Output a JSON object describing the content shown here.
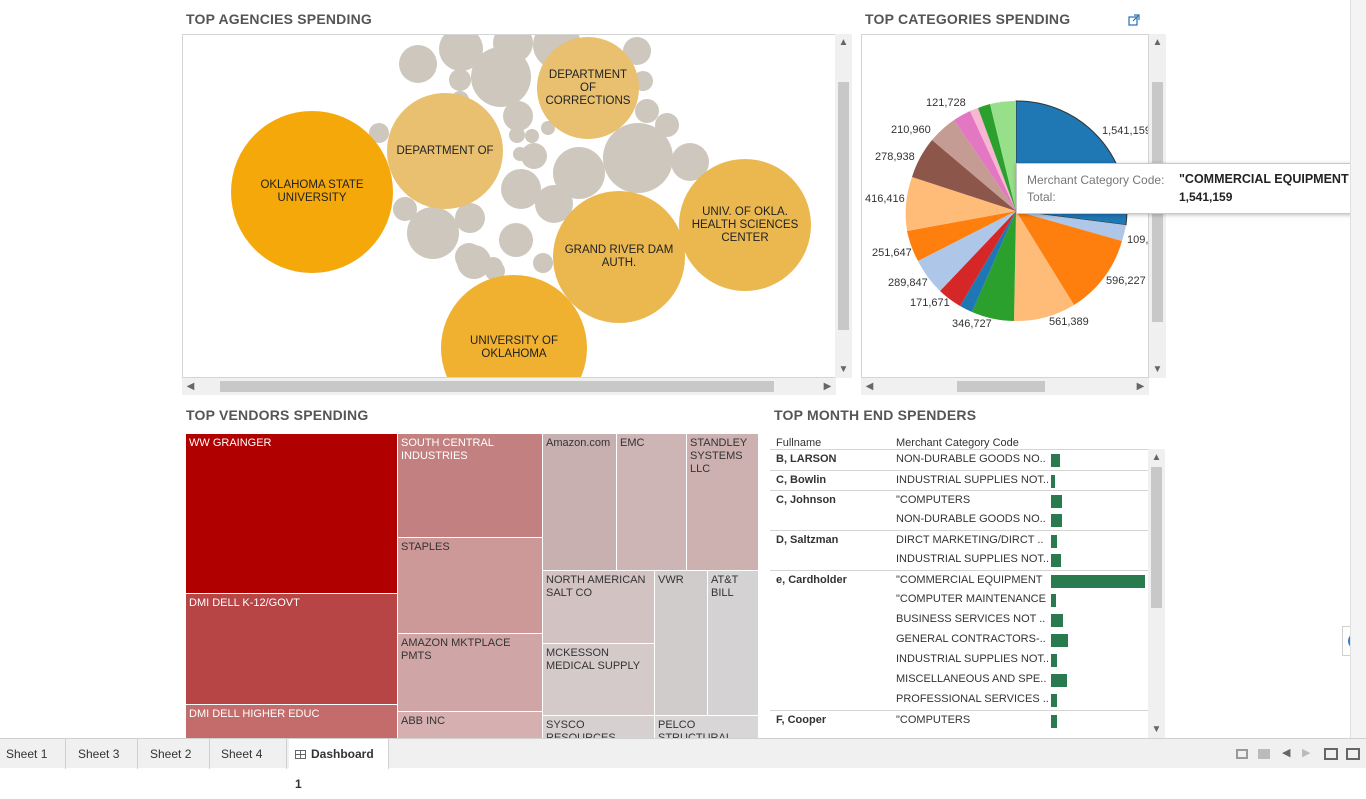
{
  "agencies": {
    "title": "TOP AGENCIES SPENDING",
    "bubbles": [
      {
        "label": "OKLAHOMA STATE UNIVERSITY",
        "color": "#f5a80a"
      },
      {
        "label": "DEPARTMENT OF",
        "color": "#e8c070"
      },
      {
        "label": "DEPARTMENT OF CORRECTIONS",
        "color": "#e8c070"
      },
      {
        "label": "GRAND RIVER DAM AUTH.",
        "color": "#ebb850"
      },
      {
        "label": "UNIV. OF OKLA. HEALTH SCIENCES CENTER",
        "color": "#ebb850"
      },
      {
        "label": "UNIVERSITY OF OKLAHOMA",
        "color": "#f0b030"
      }
    ]
  },
  "categories": {
    "title": "TOP CATEGORIES SPENDING",
    "pie_labels": [
      "1,541,159",
      "109,",
      "596,227",
      "561,389",
      "346,727",
      "171,671",
      "289,847",
      "251,647",
      "416,416",
      "278,938",
      "210,960",
      "121,728"
    ]
  },
  "tooltip": {
    "key1": "Merchant Category Code:",
    "val1": "\"COMMERCIAL EQUIPMENT",
    "key2": "Total:",
    "val2": "1,541,159"
  },
  "vendors": {
    "title": "TOP VENDORS SPENDING",
    "items": [
      "WW GRAINGER",
      "DMI  DELL K-12/GOVT",
      "DMI  DELL HIGHER EDUC",
      "SOUTH CENTRAL INDUSTRIES",
      "STAPLES",
      "AMAZON MKTPLACE PMTS",
      "ABB INC",
      "Amazon.com",
      "EMC",
      "STANDLEY SYSTEMS LLC",
      "NORTH AMERICAN SALT CO",
      "VWR",
      "AT&T BILL",
      "MCKESSON MEDICAL SUPPLY",
      "SYSCO RESOURCES",
      "PELCO STRUCTURAL"
    ]
  },
  "spenders": {
    "title": "TOP MONTH END SPENDERS",
    "col_name": "Fullname",
    "col_code": "Merchant Category Code",
    "rows": [
      {
        "name": "B, LARSON",
        "code": "NON-DURABLE GOODS NO..",
        "value": 9
      },
      {
        "name": "C, Bowlin",
        "code": "INDUSTRIAL SUPPLIES NOT..",
        "value": 4
      },
      {
        "name": "C, Johnson",
        "code": "\"COMPUTERS",
        "value": 11
      },
      {
        "name": "",
        "code": "NON-DURABLE GOODS NO..",
        "value": 11
      },
      {
        "name": "D, Saltzman",
        "code": "DIRCT MARKETING/DIRCT ..",
        "value": 6
      },
      {
        "name": "",
        "code": "INDUSTRIAL SUPPLIES NOT..",
        "value": 10
      },
      {
        "name": "e, Cardholder",
        "code": "\"COMMERCIAL EQUIPMENT",
        "value": 94
      },
      {
        "name": "",
        "code": "\"COMPUTER MAINTENANCE",
        "value": 5
      },
      {
        "name": "",
        "code": "BUSINESS SERVICES NOT ..",
        "value": 12
      },
      {
        "name": "",
        "code": "GENERAL CONTRACTORS-..",
        "value": 17
      },
      {
        "name": "",
        "code": "INDUSTRIAL SUPPLIES NOT..",
        "value": 6
      },
      {
        "name": "",
        "code": "MISCELLANEOUS AND SPE..",
        "value": 16
      },
      {
        "name": "",
        "code": "PROFESSIONAL SERVICES ..",
        "value": 6
      },
      {
        "name": "F, Cooper",
        "code": "\"COMPUTERS",
        "value": 6
      }
    ]
  },
  "tabs": [
    "Sheet 1",
    "Sheet 3",
    "Sheet 2",
    "Sheet 4",
    "Dashboard 1"
  ]
}
